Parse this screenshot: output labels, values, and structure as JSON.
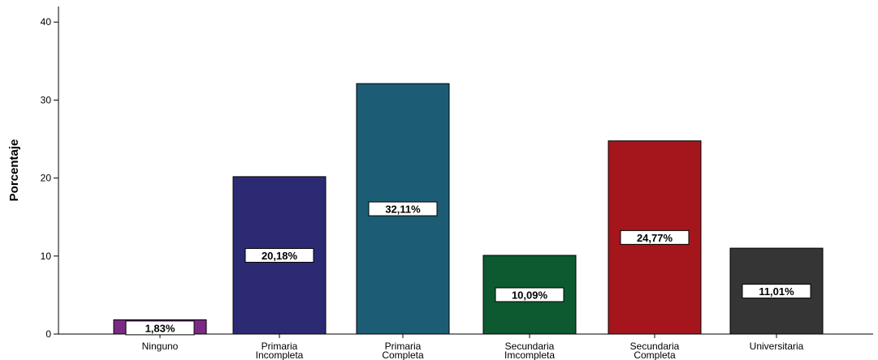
{
  "chart_data": {
    "type": "bar",
    "title": "",
    "xlabel": "",
    "ylabel": "Porcentaje",
    "ylim": [
      0,
      42
    ],
    "yticks": [
      0,
      10,
      20,
      30,
      40
    ],
    "grid": false,
    "categories": [
      [
        "Ninguno"
      ],
      [
        "Primaria",
        "Incompleta"
      ],
      [
        "Primaria",
        "Completa"
      ],
      [
        "Secundaria",
        "Imcompleta"
      ],
      [
        "Secundaria",
        "Completa"
      ],
      [
        "Universitaria"
      ]
    ],
    "values": [
      1.83,
      20.18,
      32.11,
      10.09,
      24.77,
      11.01
    ],
    "data_labels": [
      "1,83%",
      "20,18%",
      "32,11%",
      "10,09%",
      "24,77%",
      "11,01%"
    ],
    "colors": [
      "#7a2a82",
      "#2d2a74",
      "#1c5d75",
      "#0d5a30",
      "#a5161c",
      "#353535"
    ]
  }
}
